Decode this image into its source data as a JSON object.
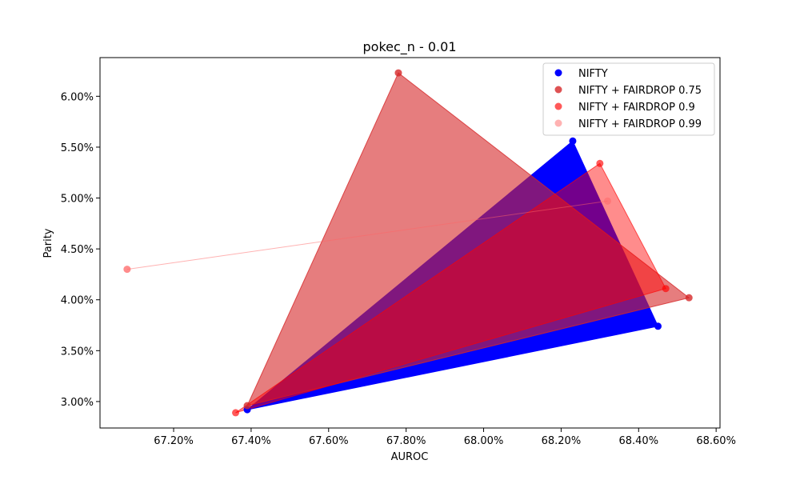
{
  "chart_data": {
    "type": "scatter",
    "title": "pokec_n - 0.01",
    "xlabel": "AUROC",
    "ylabel": "Parity",
    "xlim": [
      67.01,
      68.61
    ],
    "ylim": [
      2.74,
      6.38
    ],
    "xticks": [
      67.2,
      67.4,
      67.6,
      67.8,
      68.0,
      68.2,
      68.4,
      68.6
    ],
    "xtick_labels": [
      "67.20%",
      "67.40%",
      "67.60%",
      "67.80%",
      "68.00%",
      "68.20%",
      "68.40%",
      "68.60%"
    ],
    "yticks": [
      3.0,
      3.5,
      4.0,
      4.5,
      5.0,
      5.5,
      6.0
    ],
    "ytick_labels": [
      "3.00%",
      "3.50%",
      "4.00%",
      "4.50%",
      "5.00%",
      "5.50%",
      "6.00%"
    ],
    "grid": false,
    "legend_position": "top-right",
    "series": [
      {
        "name": "NIFTY",
        "color": "#0000ff",
        "alpha": 1.0,
        "points": [
          [
            67.39,
            2.92
          ],
          [
            68.23,
            5.56
          ],
          [
            68.45,
            3.74
          ]
        ]
      },
      {
        "name": "NIFTY + FAIRDROP 0.75",
        "color": "#d62728",
        "alpha": 0.6,
        "points": [
          [
            67.39,
            2.96
          ],
          [
            67.78,
            6.23
          ],
          [
            68.53,
            4.02
          ]
        ]
      },
      {
        "name": "NIFTY + FAIRDROP 0.9",
        "color": "#ff0000",
        "alpha": 0.45,
        "points": [
          [
            67.36,
            2.89
          ],
          [
            68.3,
            5.34
          ],
          [
            68.47,
            4.11
          ]
        ]
      },
      {
        "name": "NIFTY + FAIRDROP 0.99",
        "color": "#ff6666",
        "alpha": 0.3,
        "points": [
          [
            67.08,
            4.3
          ],
          [
            68.32,
            4.97
          ],
          [
            67.08,
            4.3
          ]
        ]
      }
    ]
  }
}
